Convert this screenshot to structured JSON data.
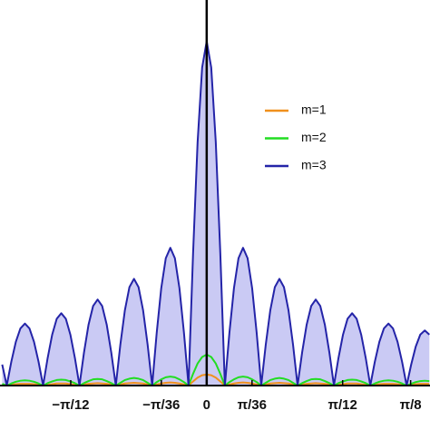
{
  "chart_data": {
    "type": "line",
    "x": [
      -0.39375,
      -0.385,
      -0.37625,
      -0.3675,
      -0.35875,
      -0.35,
      -0.34125,
      -0.3325,
      -0.32375,
      -0.315,
      -0.30625,
      -0.2975,
      -0.28875,
      -0.28,
      -0.27125,
      -0.2625,
      -0.25375,
      -0.245,
      -0.23625,
      -0.2275,
      -0.21875,
      -0.21,
      -0.20125,
      -0.1925,
      -0.18375,
      -0.175,
      -0.16625,
      -0.1575,
      -0.14875,
      -0.14,
      -0.13125,
      -0.1225,
      -0.11375,
      -0.105,
      -0.09625,
      -0.0875,
      -0.07875,
      -0.07,
      -0.06125,
      -0.0525,
      -0.04375,
      -0.035,
      -0.02625,
      -0.0175,
      -0.00875,
      0,
      0.00875,
      0.0175,
      0.02625,
      0.035,
      0.04375,
      0.0525,
      0.06125,
      0.07,
      0.07875,
      0.0875,
      0.09625,
      0.105,
      0.11375,
      0.1225,
      0.13125,
      0.14,
      0.14875,
      0.1575,
      0.16625,
      0.175,
      0.18375,
      0.1925,
      0.20125,
      0.21,
      0.21875,
      0.2275,
      0.23625,
      0.245,
      0.25375,
      0.2625,
      0.27125,
      0.28,
      0.28875,
      0.2975,
      0.30625,
      0.315,
      0.32375,
      0.3325,
      0.34125,
      0.35,
      0.35875,
      0.3675,
      0.37625,
      0.385,
      0.39375,
      0.4025,
      0.41125,
      0.42,
      0.42875
    ],
    "series": [
      {
        "name": "m=1",
        "color": "#f0901c",
        "values": [
          0.2,
          0,
          0.2,
          0.4,
          0.5,
          0.5,
          0.5,
          0.4,
          0.2,
          0,
          0.2,
          0.4,
          0.6,
          0.6,
          0.6,
          0.4,
          0.2,
          0,
          0.3,
          0.5,
          0.6,
          0.7,
          0.6,
          0.5,
          0.3,
          0,
          0.3,
          0.6,
          0.7,
          0.8,
          0.7,
          0.6,
          0.3,
          0,
          0.3,
          0.6,
          0.8,
          0.9,
          0.8,
          0.6,
          0.3,
          0,
          1.2,
          2.3,
          3.0,
          3.2,
          3.0,
          2.3,
          1.2,
          0,
          0.3,
          0.6,
          0.8,
          0.9,
          0.8,
          0.6,
          0.3,
          0,
          0.3,
          0.6,
          0.7,
          0.8,
          0.7,
          0.6,
          0.3,
          0,
          0.3,
          0.5,
          0.6,
          0.7,
          0.6,
          0.5,
          0.3,
          0,
          0.2,
          0.4,
          0.6,
          0.6,
          0.6,
          0.4,
          0.2,
          0,
          0.2,
          0.4,
          0.5,
          0.5,
          0.5,
          0.4,
          0.2,
          0,
          0.2,
          0.4,
          0.5,
          0.5,
          0.5
        ]
      },
      {
        "name": "m=2",
        "color": "#22dd22",
        "values": [
          0.5,
          0,
          0.6,
          1.1,
          1.4,
          1.5,
          1.4,
          1.1,
          0.6,
          0,
          0.7,
          1.2,
          1.6,
          1.7,
          1.6,
          1.2,
          0.7,
          0,
          0.7,
          1.3,
          1.8,
          1.9,
          1.8,
          1.3,
          0.7,
          0,
          0.8,
          1.6,
          2.0,
          2.2,
          2.0,
          1.6,
          0.8,
          0,
          1.0,
          1.8,
          2.4,
          2.6,
          2.4,
          1.8,
          1.0,
          0,
          3.4,
          6.4,
          8.3,
          9,
          8.3,
          6.4,
          3.4,
          0,
          1.0,
          1.8,
          2.4,
          2.6,
          2.4,
          1.8,
          1.0,
          0,
          0.8,
          1.6,
          2.0,
          2.2,
          2.0,
          1.6,
          0.8,
          0,
          0.7,
          1.3,
          1.8,
          1.9,
          1.8,
          1.3,
          0.7,
          0,
          0.7,
          1.2,
          1.6,
          1.7,
          1.6,
          1.2,
          0.7,
          0,
          0.6,
          1.1,
          1.4,
          1.5,
          1.4,
          1.1,
          0.6,
          0,
          0.5,
          1.0,
          1.3,
          1.4,
          1.3
        ]
      },
      {
        "name": "m=3",
        "color": "#2424a8",
        "fill": "#cacaf4",
        "values": [
          6.1,
          0,
          6.9,
          12.7,
          16.6,
          18,
          16.6,
          12.7,
          6.9,
          0,
          8.0,
          14.8,
          19.4,
          21,
          19.4,
          14.8,
          8.0,
          0,
          9.6,
          17.7,
          23.1,
          25,
          23.1,
          17.7,
          9.6,
          0,
          11.9,
          21.9,
          28.6,
          31,
          28.6,
          21.9,
          11.9,
          0,
          15.3,
          28.3,
          37,
          40,
          37,
          28.3,
          15.3,
          0,
          38.3,
          70.7,
          92.4,
          100,
          92.4,
          70.7,
          38.3,
          0,
          15.3,
          28.3,
          37,
          40,
          37,
          28.3,
          15.3,
          0,
          11.9,
          21.9,
          28.6,
          31,
          28.6,
          21.9,
          11.9,
          0,
          9.6,
          17.7,
          23.1,
          25,
          23.1,
          17.7,
          9.6,
          0,
          8.0,
          14.8,
          19.4,
          21,
          19.4,
          14.8,
          8.0,
          0,
          6.9,
          12.7,
          16.6,
          18,
          16.6,
          12.7,
          6.9,
          0,
          6.1,
          11.3,
          14.8,
          16,
          14.8
        ]
      }
    ],
    "xlim": [
      -0.398,
      0.43
    ],
    "ylim": [
      0,
      112
    ],
    "xticks": [
      {
        "value": -0.2618,
        "label": "−π/12"
      },
      {
        "value": -0.0873,
        "label": "−π/36"
      },
      0,
      {
        "value": 0.0873,
        "label": "π/36"
      },
      {
        "value": 0.2618,
        "label": "π/12"
      },
      {
        "value": 0.3927,
        "label": "π/8"
      }
    ],
    "legend": "upper right"
  }
}
